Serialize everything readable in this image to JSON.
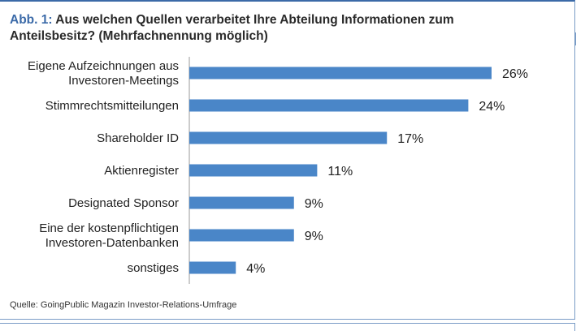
{
  "header": {
    "prefix": "Abb. 1:",
    "title": "Aus welchen Quellen verarbeitet Ihre Abteilung Informationen zum Anteilsbesitz? (Mehrfachnennung möglich)"
  },
  "footer": {
    "source": "Quelle: GoingPublic Magazin Investor-Relations-Umfrage"
  },
  "colors": {
    "bar": "#4a86c8",
    "title_accent": "#3b6aa8",
    "axis": "#999999"
  },
  "chart_data": {
    "type": "bar",
    "orientation": "horizontal",
    "categories": [
      [
        "Eigene Aufzeichnungen aus",
        "Investoren-Meetings"
      ],
      [
        "Stimmrechtsmitteilungen"
      ],
      [
        "Shareholder ID"
      ],
      [
        "Aktienregister"
      ],
      [
        "Designated Sponsor"
      ],
      [
        "Eine der kostenpflichtigen",
        "Investoren-Datenbanken"
      ],
      [
        "sonstiges"
      ]
    ],
    "values": [
      26,
      24,
      17,
      11,
      9,
      9,
      4
    ],
    "value_labels": [
      "26%",
      "24%",
      "17%",
      "11%",
      "9%",
      "9%",
      "4%"
    ],
    "xlim": [
      0,
      30
    ],
    "grid": false
  }
}
